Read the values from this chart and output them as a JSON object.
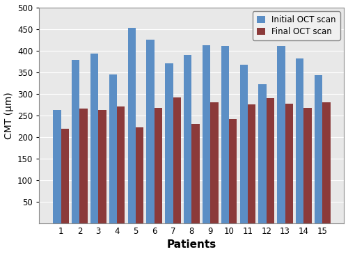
{
  "patients": [
    1,
    2,
    3,
    4,
    5,
    6,
    7,
    8,
    9,
    10,
    11,
    12,
    13,
    14,
    15
  ],
  "initial_oct": [
    263,
    379,
    393,
    345,
    452,
    425,
    370,
    390,
    412,
    410,
    367,
    322,
    411,
    382,
    343
  ],
  "final_oct": [
    219,
    265,
    263,
    270,
    222,
    268,
    292,
    231,
    280,
    241,
    276,
    290,
    277,
    268,
    280
  ],
  "initial_color": "#5B8EC5",
  "final_color": "#8B3A3A",
  "initial_label": "Initial OCT scan",
  "final_label": "Final OCT scan",
  "xlabel": "Patients",
  "ylabel": "CMT (μm)",
  "ylim": [
    0,
    500
  ],
  "yticks": [
    50,
    100,
    150,
    200,
    250,
    300,
    350,
    400,
    450,
    500
  ],
  "bar_width": 0.42,
  "legend_fontsize": 8.5,
  "xlabel_fontsize": 11,
  "ylabel_fontsize": 10,
  "tick_fontsize": 8.5,
  "plot_bg_color": "#E8E8E8",
  "figure_bg_color": "#ffffff",
  "grid_color": "#ffffff"
}
